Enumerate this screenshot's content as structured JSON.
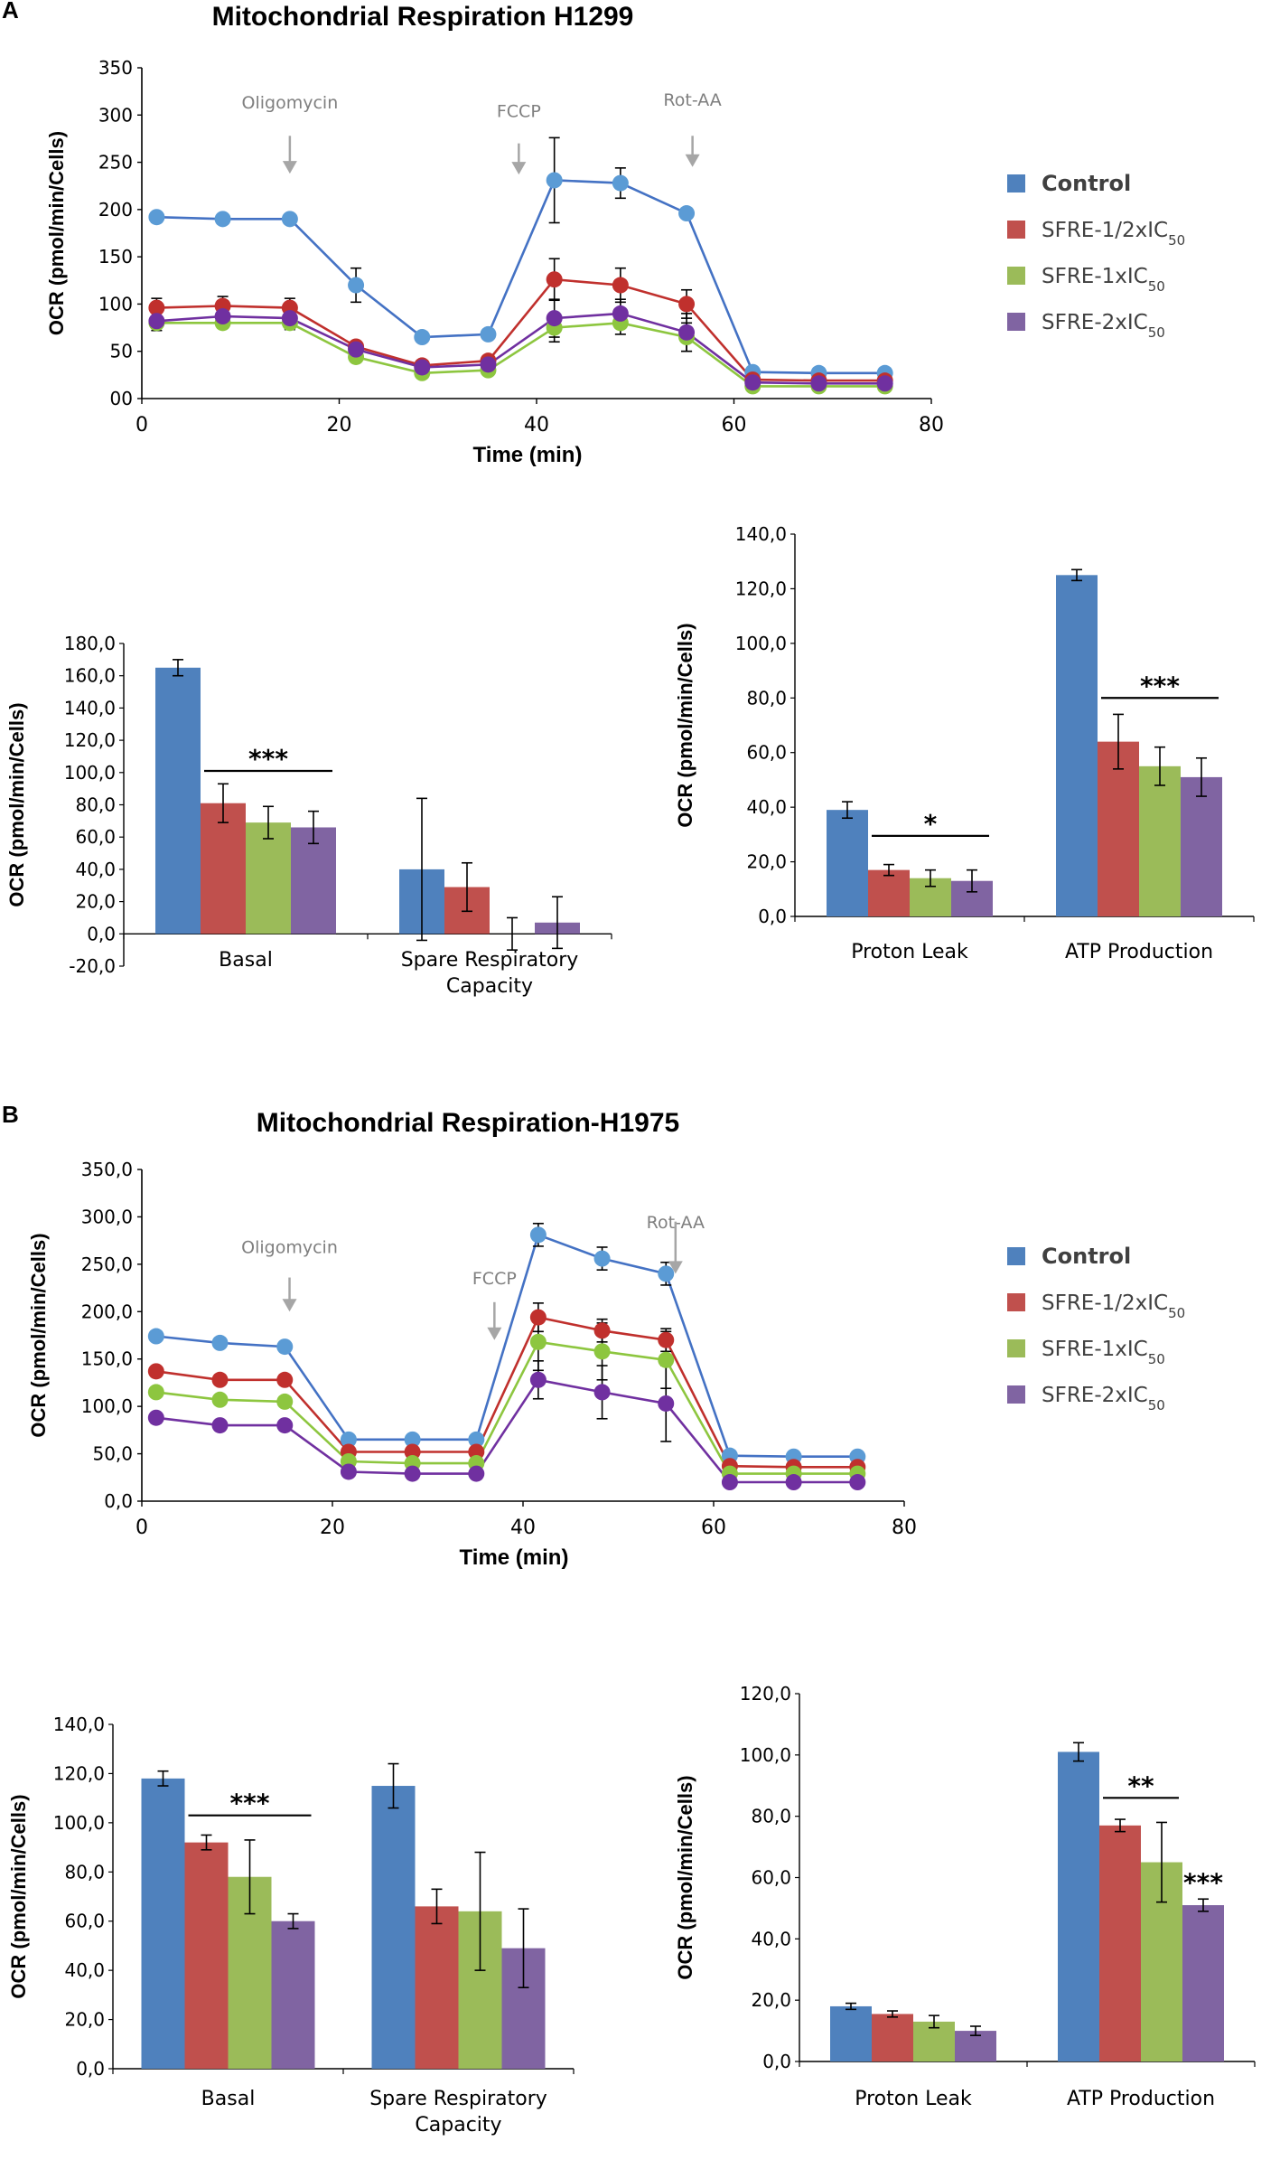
{
  "colors": {
    "Control": "#4472c4",
    "SFRE-1/2xIC50": "#c0302d",
    "SFRE-1xIC50": "#8dc63f",
    "SFRE-2xIC50": "#7030a0",
    "marker_Control": "#5b9bd5",
    "marker_SFRE-1/2xIC50": "#c0302d",
    "marker_SFRE-1xIC50": "#8dc63f",
    "marker_SFRE-2xIC50": "#7030a0",
    "bar_Control": "#4f81bd",
    "bar_SFRE-1/2xIC50": "#c0504d",
    "bar_SFRE-1xIC50": "#9bbb59",
    "bar_SFRE-2xIC50": "#8064a2",
    "arrow": "#a6a6a6"
  },
  "panels": {
    "A": {
      "letter": "A",
      "title": "Mitochondrial Respiration H1299"
    },
    "B": {
      "letter": "B",
      "title": "Mitochondrial Respiration-H1975"
    }
  },
  "legend": [
    {
      "key": "Control",
      "main": "Control",
      "sub": ""
    },
    {
      "key": "SFRE-1/2xIC50",
      "main": "SFRE-1/2xIC",
      "sub": "50"
    },
    {
      "key": "SFRE-1xIC50",
      "main": "SFRE-1xIC",
      "sub": "50"
    },
    {
      "key": "SFRE-2xIC50",
      "main": "SFRE-2xIC",
      "sub": "50"
    }
  ],
  "chart_data": [
    {
      "id": "A-line",
      "type": "line",
      "title": "Mitochondrial Respiration H1299",
      "xlabel": "Time (min)",
      "ylabel": "OCR (pmol/min/Cells)",
      "xlim": [
        0,
        80
      ],
      "ylim": [
        0,
        350
      ],
      "xticks": [
        "0",
        "20",
        "40",
        "60",
        "80"
      ],
      "yticks": [
        "00",
        "50",
        "100",
        "150",
        "200",
        "250",
        "300",
        "350"
      ],
      "x": [
        1.5,
        8.2,
        15.0,
        21.7,
        28.4,
        35.1,
        41.8,
        48.5,
        55.2,
        61.9,
        68.6,
        75.3
      ],
      "annotations": [
        {
          "label": "Oligomycin",
          "x": 15.0,
          "y_text": 307,
          "y_arrow_top": 278,
          "y_arrow_bottom": 238
        },
        {
          "label": "FCCP",
          "x": 38.2,
          "y_text": 298,
          "y_arrow_top": 270,
          "y_arrow_bottom": 237
        },
        {
          "label": "Rot-AA",
          "x": 55.8,
          "y_text": 310,
          "y_arrow_top": 278,
          "y_arrow_bottom": 245
        }
      ],
      "series": [
        {
          "name": "Control",
          "values": [
            192,
            190,
            190,
            120,
            65,
            68,
            231,
            228,
            196,
            28,
            27,
            27
          ],
          "errors": [
            0,
            0,
            0,
            18,
            0,
            0,
            45,
            16,
            0,
            0,
            0,
            0
          ]
        },
        {
          "name": "SFRE-1/2xIC50",
          "values": [
            96,
            98,
            96,
            55,
            35,
            40,
            126,
            120,
            100,
            20,
            19,
            19
          ],
          "errors": [
            10,
            10,
            10,
            0,
            0,
            0,
            22,
            18,
            15,
            0,
            0,
            0
          ]
        },
        {
          "name": "SFRE-1xIC50",
          "values": [
            80,
            80,
            80,
            44,
            27,
            30,
            75,
            80,
            65,
            13,
            13,
            13
          ],
          "errors": [
            0,
            0,
            0,
            0,
            0,
            0,
            15,
            12,
            15,
            0,
            0,
            0
          ]
        },
        {
          "name": "SFRE-2xIC50",
          "values": [
            82,
            87,
            85,
            52,
            33,
            36,
            85,
            90,
            70,
            17,
            16,
            16
          ],
          "errors": [
            10,
            10,
            12,
            0,
            0,
            0,
            20,
            15,
            20,
            0,
            0,
            0
          ]
        }
      ]
    },
    {
      "id": "A-bar-left",
      "type": "bar",
      "ylabel": "OCR (pmol/min/Cells)",
      "ylim": [
        -20,
        180
      ],
      "yticks": [
        "-20,0",
        "0,0",
        "20,0",
        "40,0",
        "60,0",
        "80,0",
        "100,0",
        "120,0",
        "140,0",
        "160,0",
        "180,0"
      ],
      "categories": [
        "Basal",
        "Spare Respiratory Capacity"
      ],
      "category_lines": [
        [
          "Basal"
        ],
        [
          "Spare Respiratory",
          "Capacity"
        ]
      ],
      "series": [
        {
          "name": "Control",
          "values": [
            165,
            40
          ],
          "errors": [
            5,
            44
          ]
        },
        {
          "name": "SFRE-1/2xIC50",
          "values": [
            81,
            29
          ],
          "errors": [
            12,
            15
          ]
        },
        {
          "name": "SFRE-1xIC50",
          "values": [
            69,
            0
          ],
          "errors": [
            10,
            10
          ]
        },
        {
          "name": "SFRE-2xIC50",
          "values": [
            66,
            7
          ],
          "errors": [
            10,
            16
          ]
        }
      ],
      "significance": [
        {
          "label": "***",
          "category": 0,
          "from_series": 1,
          "to_series": 3,
          "y": 101
        }
      ]
    },
    {
      "id": "A-bar-right",
      "type": "bar",
      "ylabel": "OCR (pmol/min/Cells)",
      "ylim": [
        0,
        140
      ],
      "yticks": [
        "0,0",
        "20,0",
        "40,0",
        "60,0",
        "80,0",
        "100,0",
        "120,0",
        "140,0"
      ],
      "categories": [
        "Proton Leak",
        "ATP Production"
      ],
      "category_lines": [
        [
          "Proton Leak"
        ],
        [
          "ATP Production"
        ]
      ],
      "series": [
        {
          "name": "Control",
          "values": [
            39,
            125
          ],
          "errors": [
            3,
            2
          ]
        },
        {
          "name": "SFRE-1/2xIC50",
          "values": [
            17,
            64
          ],
          "errors": [
            2,
            10
          ]
        },
        {
          "name": "SFRE-1xIC50",
          "values": [
            14,
            55
          ],
          "errors": [
            3,
            7
          ]
        },
        {
          "name": "SFRE-2xIC50",
          "values": [
            13,
            51
          ],
          "errors": [
            4,
            7
          ]
        }
      ],
      "significance": [
        {
          "label": "*",
          "category": 0,
          "from_series": 1,
          "to_series": 3,
          "y": 29.5
        },
        {
          "label": "***",
          "category": 1,
          "from_series": 1,
          "to_series": 3,
          "y": 80
        }
      ]
    },
    {
      "id": "B-line",
      "type": "line",
      "title": "Mitochondrial Respiration-H1975",
      "xlabel": "Time (min)",
      "ylabel": "OCR (pmol/min/Cells)",
      "xlim": [
        0,
        80
      ],
      "ylim": [
        0,
        350
      ],
      "xticks": [
        "0",
        "20",
        "40",
        "60",
        "80"
      ],
      "yticks": [
        "0,0",
        "50,0",
        "100,0",
        "150,0",
        "200,0",
        "250,0",
        "300,0",
        "350,0"
      ],
      "x": [
        1.5,
        8.2,
        15.0,
        21.7,
        28.4,
        35.1,
        41.6,
        48.3,
        55.0,
        61.7,
        68.4,
        75.1
      ],
      "annotations": [
        {
          "label": "Oligomycin",
          "x": 15.5,
          "y_text": 262,
          "y_arrow_top": 236,
          "y_arrow_bottom": 200
        },
        {
          "label": "FCCP",
          "x": 37.0,
          "y_text": 229,
          "y_arrow_top": 210,
          "y_arrow_bottom": 170
        },
        {
          "label": "Rot-AA",
          "x": 56.0,
          "y_text": 288,
          "y_arrow_top": 295,
          "y_arrow_bottom": 240
        }
      ],
      "series": [
        {
          "name": "Control",
          "values": [
            174,
            167,
            163,
            65,
            65,
            65,
            281,
            256,
            240,
            48,
            47,
            47
          ],
          "errors": [
            0,
            0,
            0,
            0,
            0,
            0,
            12,
            12,
            12,
            0,
            0,
            0
          ]
        },
        {
          "name": "SFRE-1/2xIC50",
          "values": [
            137,
            128,
            128,
            52,
            52,
            52,
            194,
            180,
            170,
            37,
            36,
            36
          ],
          "errors": [
            0,
            0,
            0,
            0,
            0,
            0,
            15,
            12,
            12,
            0,
            0,
            0
          ]
        },
        {
          "name": "SFRE-1xIC50",
          "values": [
            115,
            107,
            105,
            42,
            40,
            40,
            168,
            158,
            149,
            29,
            29,
            29
          ],
          "errors": [
            0,
            0,
            0,
            0,
            0,
            0,
            30,
            30,
            30,
            0,
            0,
            0
          ]
        },
        {
          "name": "SFRE-2xIC50",
          "values": [
            88,
            80,
            80,
            31,
            29,
            29,
            128,
            115,
            103,
            20,
            20,
            20
          ],
          "errors": [
            0,
            0,
            0,
            0,
            0,
            0,
            20,
            28,
            40,
            0,
            0,
            0
          ]
        }
      ]
    },
    {
      "id": "B-bar-left",
      "type": "bar",
      "ylabel": "OCR (pmol/min/Cells)",
      "ylim": [
        0,
        140
      ],
      "yticks": [
        "0,0",
        "20,0",
        "40,0",
        "60,0",
        "80,0",
        "100,0",
        "120,0",
        "140,0"
      ],
      "categories": [
        "Basal",
        "Spare Respiratory Capacity"
      ],
      "category_lines": [
        [
          "Basal"
        ],
        [
          "Spare Respiratory",
          "Capacity"
        ]
      ],
      "series": [
        {
          "name": "Control",
          "values": [
            118,
            115
          ],
          "errors": [
            3,
            9
          ]
        },
        {
          "name": "SFRE-1/2xIC50",
          "values": [
            92,
            66
          ],
          "errors": [
            3,
            7
          ]
        },
        {
          "name": "SFRE-1xIC50",
          "values": [
            78,
            64
          ],
          "errors": [
            15,
            24
          ]
        },
        {
          "name": "SFRE-2xIC50",
          "values": [
            60,
            49
          ],
          "errors": [
            3,
            16
          ]
        }
      ],
      "significance": [
        {
          "label": "***",
          "category": 0,
          "from_series": 1,
          "to_series": 3,
          "y": 103
        }
      ]
    },
    {
      "id": "B-bar-right",
      "type": "bar",
      "ylabel": "OCR (pmol/min/Cells)",
      "ylim": [
        0,
        120
      ],
      "yticks": [
        "0,0",
        "20,0",
        "40,0",
        "60,0",
        "80,0",
        "100,0",
        "120,0"
      ],
      "categories": [
        "Proton Leak",
        "ATP Production"
      ],
      "category_lines": [
        [
          "Proton Leak"
        ],
        [
          "ATP Production"
        ]
      ],
      "series": [
        {
          "name": "Control",
          "values": [
            18,
            101
          ],
          "errors": [
            1,
            3
          ]
        },
        {
          "name": "SFRE-1/2xIC50",
          "values": [
            15.5,
            77
          ],
          "errors": [
            1,
            2
          ]
        },
        {
          "name": "SFRE-1xIC50",
          "values": [
            13,
            65
          ],
          "errors": [
            2,
            13
          ]
        },
        {
          "name": "SFRE-2xIC50",
          "values": [
            10,
            51
          ],
          "errors": [
            1.5,
            2
          ]
        }
      ],
      "significance": [
        {
          "label": "**",
          "category": 1,
          "from_series": 1,
          "to_series": 2,
          "y": 86
        },
        {
          "label": "***",
          "category": 1,
          "single_series": 3,
          "y": 58
        }
      ]
    }
  ]
}
